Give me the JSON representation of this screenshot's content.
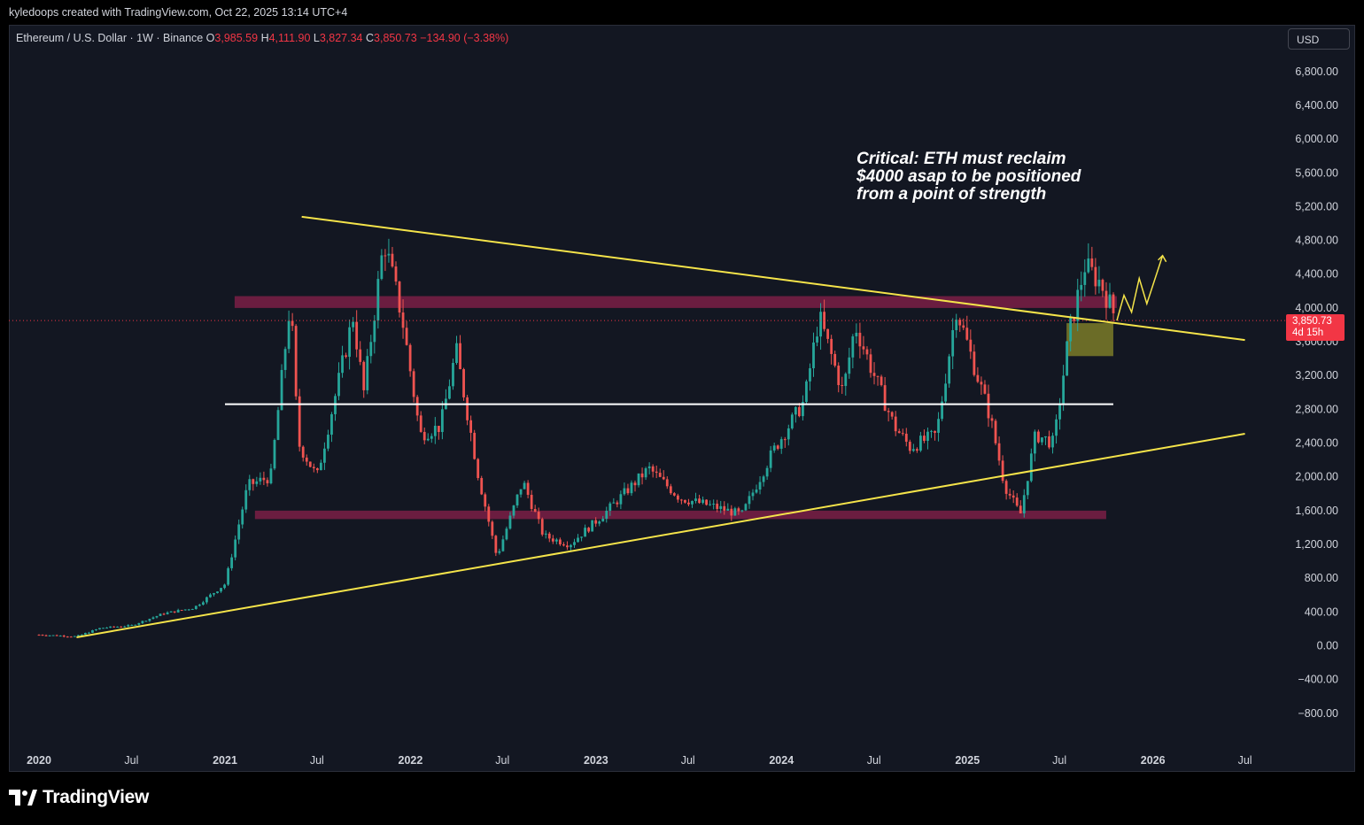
{
  "header": {
    "credit": "kyledoops created with TradingView.com, Oct 22, 2025 13:14 UTC+4"
  },
  "legend": {
    "symbol": "Ethereum / U.S. Dollar · 1W · Binance",
    "o_label": "O",
    "o_value": "3,985.59",
    "h_label": "H",
    "h_value": "4,111.90",
    "l_label": "L",
    "l_value": "3,827.34",
    "c_label": "C",
    "c_value": "3,850.73",
    "change": "−134.90 (−3.38%)"
  },
  "currency_button": "USD",
  "price_tag": {
    "price": "3,850.73",
    "countdown": "4d 15h"
  },
  "annotation": "Critical: ETH must reclaim $4000 asap to be positioned from a point of strength",
  "footer": {
    "brand": "TradingView"
  },
  "colors": {
    "background": "#131722",
    "up": "#26a69a",
    "down": "#ef5350",
    "trendline": "#f5e44a",
    "zone": "#7b1f45",
    "accent_tag": "#f23645"
  },
  "chart_data": {
    "type": "candlestick",
    "timeframe": "1W",
    "ylim": [
      -1000,
      7200
    ],
    "y_ticks": [
      "6,800.00",
      "6,400.00",
      "6,000.00",
      "5,600.00",
      "5,200.00",
      "4,800.00",
      "4,400.00",
      "4,000.00",
      "3,600.00",
      "3,200.00",
      "2,800.00",
      "2,400.00",
      "2,000.00",
      "1,600.00",
      "1,200.00",
      "800.00",
      "400.00",
      "0.00",
      "−400.00",
      "−800.00"
    ],
    "x_ticks": [
      "2020",
      "Jul",
      "2021",
      "Jul",
      "2022",
      "Jul",
      "2023",
      "Jul",
      "2024",
      "Jul",
      "2025",
      "Jul",
      "2026",
      "Jul"
    ],
    "x_ticks_bold": [
      "2020",
      "2021",
      "2022",
      "2023",
      "2024",
      "2025",
      "2026"
    ],
    "last_close": 3850.73,
    "price_path": [
      [
        "2020-01-01",
        130
      ],
      [
        "2020-03-15",
        110
      ],
      [
        "2020-05-01",
        210
      ],
      [
        "2020-07-01",
        240
      ],
      [
        "2020-09-01",
        380
      ],
      [
        "2020-11-01",
        450
      ],
      [
        "2021-01-01",
        730
      ],
      [
        "2021-02-15",
        1900
      ],
      [
        "2021-04-01",
        2000
      ],
      [
        "2021-05-10",
        4100
      ],
      [
        "2021-05-25",
        2400
      ],
      [
        "2021-07-01",
        2000
      ],
      [
        "2021-08-15",
        3200
      ],
      [
        "2021-09-10",
        3900
      ],
      [
        "2021-10-01",
        3000
      ],
      [
        "2021-11-10",
        4800
      ],
      [
        "2021-12-15",
        3900
      ],
      [
        "2022-01-20",
        2500
      ],
      [
        "2022-03-01",
        2600
      ],
      [
        "2022-04-01",
        3500
      ],
      [
        "2022-05-15",
        2000
      ],
      [
        "2022-06-20",
        1050
      ],
      [
        "2022-08-10",
        1950
      ],
      [
        "2022-09-20",
        1300
      ],
      [
        "2022-11-10",
        1200
      ],
      [
        "2023-01-15",
        1550
      ],
      [
        "2023-04-15",
        2100
      ],
      [
        "2023-06-15",
        1750
      ],
      [
        "2023-08-20",
        1650
      ],
      [
        "2023-10-15",
        1550
      ],
      [
        "2023-12-15",
        2300
      ],
      [
        "2024-02-15",
        2900
      ],
      [
        "2024-03-15",
        3900
      ],
      [
        "2024-05-01",
        3000
      ],
      [
        "2024-05-25",
        3800
      ],
      [
        "2024-06-25",
        3300
      ],
      [
        "2024-08-10",
        2600
      ],
      [
        "2024-09-10",
        2350
      ],
      [
        "2024-11-01",
        2500
      ],
      [
        "2024-12-10",
        4000
      ],
      [
        "2025-01-15",
        3300
      ],
      [
        "2025-02-15",
        2700
      ],
      [
        "2025-03-15",
        1900
      ],
      [
        "2025-04-15",
        1550
      ],
      [
        "2025-05-15",
        2500
      ],
      [
        "2025-06-20",
        2400
      ],
      [
        "2025-07-20",
        3700
      ],
      [
        "2025-08-20",
        4500
      ],
      [
        "2025-09-20",
        4300
      ],
      [
        "2025-10-22",
        3850
      ]
    ],
    "resistance_zones": [
      [
        4000,
        4140
      ],
      [
        1500,
        1600
      ]
    ],
    "demand_zone": {
      "from": "2025-07-15",
      "to": "2025-10-15",
      "low": 3430,
      "high": 3820
    },
    "horizontal_line": {
      "price": 2860,
      "from": "2021-01-01",
      "to": "2025-10-15"
    },
    "trendlines": [
      {
        "from": [
          "2021-06-01",
          5080
        ],
        "to": [
          "2026-07-01",
          3620
        ]
      },
      {
        "from": [
          "2020-03-15",
          100
        ],
        "to": [
          "2026-07-01",
          2510
        ]
      }
    ],
    "projection": [
      [
        "2025-10-22",
        3850
      ],
      [
        "2025-11-05",
        4150
      ],
      [
        "2025-11-20",
        3950
      ],
      [
        "2025-12-05",
        4350
      ],
      [
        "2025-12-20",
        4050
      ],
      [
        "2026-01-20",
        4620
      ]
    ]
  }
}
